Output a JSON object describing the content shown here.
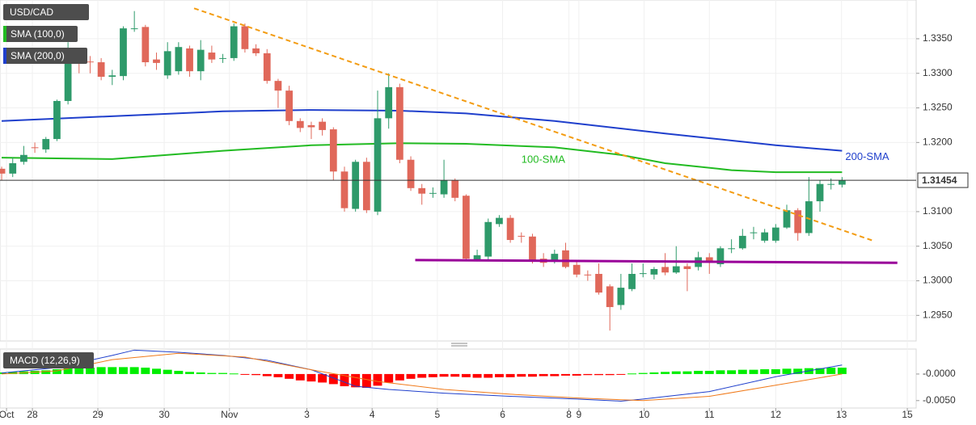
{
  "chart_data": [
    {
      "type": "candlestick",
      "title": "USD/CAD",
      "up_color": "#2e9a6a",
      "down_color": "#e0685a",
      "xlim": [
        -0.15,
        82.7
      ],
      "xticks": [
        {
          "value": 0.44,
          "label": "Oct"
        },
        {
          "value": 2.78,
          "label": "28"
        },
        {
          "value": 8.7,
          "label": "29"
        },
        {
          "value": 14.7,
          "label": "30"
        },
        {
          "value": 20.6,
          "label": "Nov"
        },
        {
          "value": 27.6,
          "label": "3"
        },
        {
          "value": 33.5,
          "label": "4"
        },
        {
          "value": 39.4,
          "label": "5"
        },
        {
          "value": 45.3,
          "label": "6"
        },
        {
          "value": 51.3,
          "label": "8"
        },
        {
          "value": 52.2,
          "label": "9"
        },
        {
          "value": 58.1,
          "label": "10"
        },
        {
          "value": 64.0,
          "label": "11"
        },
        {
          "value": 70.0,
          "label": "12"
        },
        {
          "value": 75.95,
          "label": "13"
        },
        {
          "value": 81.9,
          "label": "15"
        }
      ],
      "ylim": [
        1.2913,
        1.3406
      ],
      "yticks": [
        {
          "value": 1.335,
          "label": "1.3350"
        },
        {
          "value": 1.33,
          "label": "1.3300"
        },
        {
          "value": 1.325,
          "label": "1.3250"
        },
        {
          "value": 1.32,
          "label": "1.3200"
        },
        {
          "value": 1.31,
          "label": "1.3100"
        },
        {
          "value": 1.305,
          "label": "1.3050"
        },
        {
          "value": 1.3,
          "label": "1.3000"
        },
        {
          "value": 1.295,
          "label": "1.2950"
        }
      ],
      "grid": true,
      "last_price": 1.31454,
      "open": [
        1.3162,
        1.3155,
        1.3172,
        1.3193,
        1.319,
        1.3205,
        1.326,
        1.3322,
        1.3317,
        1.3316,
        1.3295,
        1.3296,
        1.3364,
        1.3367,
        1.332,
        1.3297,
        1.3303,
        1.3336,
        1.3303,
        1.333,
        1.3322,
        1.3322,
        1.3368,
        1.3336,
        1.3329,
        1.3289,
        1.3275,
        1.3231,
        1.3225,
        1.323,
        1.3219,
        1.3158,
        1.3104,
        1.3172,
        1.31,
        1.3235,
        1.328,
        1.3175,
        1.3134,
        1.3126,
        1.3125,
        1.3145,
        1.3123,
        1.303,
        1.3035,
        1.3082,
        1.3091,
        1.3065,
        1.3064,
        1.3032,
        1.3028,
        1.3044,
        1.3023,
        1.3009,
        1.301,
        1.2992,
        1.2965,
        1.2988,
        1.301,
        1.3009,
        1.302,
        1.3012,
        1.3021,
        1.302,
        1.3034,
        1.3024,
        1.3046,
        1.3047,
        1.3069,
        1.3058,
        1.3058,
        1.3077,
        1.3102,
        1.3069,
        1.3115,
        1.3139,
        1.3139
      ],
      "high": [
        1.3165,
        1.3178,
        1.3195,
        1.32,
        1.3208,
        1.3262,
        1.3345,
        1.3325,
        1.3325,
        1.3322,
        1.3305,
        1.3368,
        1.339,
        1.337,
        1.333,
        1.3345,
        1.3345,
        1.334,
        1.3348,
        1.334,
        1.3328,
        1.3372,
        1.3372,
        1.3342,
        1.3335,
        1.3292,
        1.3282,
        1.3235,
        1.323,
        1.3235,
        1.3222,
        1.3165,
        1.3175,
        1.3178,
        1.3275,
        1.33,
        1.3285,
        1.318,
        1.314,
        1.3135,
        1.3175,
        1.3148,
        1.3125,
        1.3045,
        1.309,
        1.3095,
        1.3095,
        1.307,
        1.3068,
        1.304,
        1.3045,
        1.3055,
        1.3028,
        1.3015,
        1.3025,
        1.2995,
        1.301,
        1.3025,
        1.3025,
        1.302,
        1.304,
        1.305,
        1.3025,
        1.3042,
        1.304,
        1.305,
        1.306,
        1.3075,
        1.3078,
        1.3075,
        1.3082,
        1.311,
        1.3105,
        1.315,
        1.3145,
        1.3148,
        1.315
      ],
      "low": [
        1.3145,
        1.315,
        1.3168,
        1.3185,
        1.3185,
        1.3202,
        1.3255,
        1.33,
        1.33,
        1.329,
        1.3283,
        1.329,
        1.336,
        1.331,
        1.3305,
        1.3292,
        1.3298,
        1.3295,
        1.329,
        1.3315,
        1.3315,
        1.3318,
        1.333,
        1.3325,
        1.3285,
        1.325,
        1.3225,
        1.3215,
        1.3205,
        1.321,
        1.3145,
        1.31,
        1.31,
        1.3098,
        1.3095,
        1.322,
        1.317,
        1.313,
        1.311,
        1.312,
        1.312,
        1.3115,
        1.303,
        1.3028,
        1.303,
        1.3078,
        1.3055,
        1.3055,
        1.3025,
        1.302,
        1.3025,
        1.3018,
        1.3005,
        1.3,
        1.298,
        1.2928,
        1.2958,
        1.2985,
        1.3005,
        1.3002,
        1.3008,
        1.301,
        1.2985,
        1.3015,
        1.301,
        1.302,
        1.304,
        1.3045,
        1.306,
        1.3055,
        1.3055,
        1.3075,
        1.3058,
        1.3065,
        1.31,
        1.3132,
        1.3135
      ],
      "close": [
        1.3155,
        1.317,
        1.3182,
        1.3192,
        1.3205,
        1.326,
        1.3322,
        1.3315,
        1.3316,
        1.3295,
        1.3297,
        1.3365,
        1.3365,
        1.3316,
        1.3315,
        1.3332,
        1.3338,
        1.3303,
        1.3334,
        1.332,
        1.3322,
        1.3368,
        1.3335,
        1.3329,
        1.3289,
        1.3275,
        1.3231,
        1.3221,
        1.3222,
        1.3218,
        1.3158,
        1.3105,
        1.3172,
        1.3102,
        1.3235,
        1.328,
        1.3175,
        1.3134,
        1.3126,
        1.3127,
        1.3145,
        1.312,
        1.3032,
        1.3037,
        1.3085,
        1.3091,
        1.3059,
        1.3064,
        1.303,
        1.3026,
        1.3039,
        1.302,
        1.3009,
        1.3008,
        1.2983,
        1.2962,
        1.299,
        1.301,
        1.3011,
        1.3017,
        1.3012,
        1.3021,
        1.3017,
        1.3034,
        1.3029,
        1.3047,
        1.3047,
        1.3065,
        1.307,
        1.307,
        1.3077,
        1.3102,
        1.3069,
        1.3115,
        1.314,
        1.314,
        1.31454
      ],
      "series": [
        {
          "name": "SMA (100,0)",
          "label": "100-SMA",
          "color": "#22bb22",
          "x": [
            0,
            10,
            20,
            28,
            36,
            42,
            50,
            56,
            60,
            66,
            70,
            76
          ],
          "values": [
            1.3178,
            1.3176,
            1.3188,
            1.3196,
            1.3199,
            1.3198,
            1.3193,
            1.3182,
            1.317,
            1.316,
            1.3157,
            1.3157
          ]
        },
        {
          "name": "SMA (200,0)",
          "label": "200-SMA",
          "color": "#1f3fcc",
          "x": [
            0,
            20,
            28,
            36,
            42,
            50,
            60,
            70,
            76
          ],
          "values": [
            1.3231,
            1.3245,
            1.3247,
            1.3246,
            1.3242,
            1.3231,
            1.3213,
            1.3196,
            1.3188
          ]
        }
      ],
      "lines": [
        {
          "color": "#f39c12",
          "dashed": true,
          "x": [
            17.4,
            78.8
          ],
          "values": [
            1.3394,
            1.3058
          ]
        },
        {
          "color": "#990099",
          "dashed": false,
          "x": [
            37.4,
            81
          ],
          "values": [
            1.303,
            1.3026
          ]
        }
      ]
    },
    {
      "type": "macd",
      "title": "MACD (12,26,9)",
      "up_color": "#00ee00",
      "down_color": "#ff0000",
      "ylim": [
        -0.0064,
        0.0047
      ],
      "yticks": [
        {
          "value": 0,
          "label": "-0.0000"
        },
        {
          "value": -0.005,
          "label": "-0.0050"
        }
      ],
      "histogram": [
        0.0003,
        0.0004,
        0.0005,
        0.0006,
        0.0007,
        0.0009,
        0.0011,
        0.0012,
        0.0012,
        0.0013,
        0.0013,
        0.0013,
        0.0013,
        0.0012,
        0.001,
        0.0008,
        0.0006,
        0.0004,
        0.0003,
        0.0002,
        0.0002,
        0.0001,
        -0.0001,
        -0.0002,
        -0.0004,
        -0.0006,
        -0.0009,
        -0.0012,
        -0.0014,
        -0.0016,
        -0.0019,
        -0.0023,
        -0.0025,
        -0.0026,
        -0.0022,
        -0.0016,
        -0.0012,
        -0.0009,
        -0.0007,
        -0.0006,
        -0.0005,
        -0.0005,
        -0.0006,
        -0.0007,
        -0.0007,
        -0.0006,
        -0.0006,
        -0.0005,
        -0.0005,
        -0.0004,
        -0.0004,
        -0.0003,
        -0.0003,
        -0.0002,
        -0.0002,
        -0.0002,
        -0.0001,
        0.0001,
        0.0002,
        0.0003,
        0.0004,
        0.0005,
        0.0005,
        0.0006,
        0.0006,
        0.0007,
        0.0007,
        0.0008,
        0.0008,
        0.0009,
        0.0009,
        0.001,
        0.001,
        0.0011,
        0.0011,
        0.0012,
        0.0012
      ],
      "series": [
        {
          "color": "#1f3fcc",
          "x": [
            0,
            5,
            10,
            12,
            16,
            20,
            24,
            28,
            32,
            35,
            40,
            46,
            52,
            56,
            58,
            64,
            70,
            76
          ],
          "values": [
            0.0002,
            0.0012,
            0.0035,
            0.0045,
            0.0041,
            0.0035,
            0.0026,
            0.0008,
            -0.0023,
            -0.0029,
            -0.0036,
            -0.0042,
            -0.0047,
            -0.0051,
            -0.0047,
            -0.0033,
            -0.0005,
            0.0017
          ]
        },
        {
          "color": "#f07a1a",
          "x": [
            0,
            5,
            10,
            16,
            22,
            28,
            34,
            40,
            46,
            52,
            58,
            64,
            70,
            76
          ],
          "values": [
            0.0,
            0.0006,
            0.0027,
            0.0039,
            0.0032,
            0.0008,
            -0.0014,
            -0.0029,
            -0.0038,
            -0.0045,
            -0.005,
            -0.0042,
            -0.0021,
            0.0
          ]
        }
      ]
    }
  ]
}
